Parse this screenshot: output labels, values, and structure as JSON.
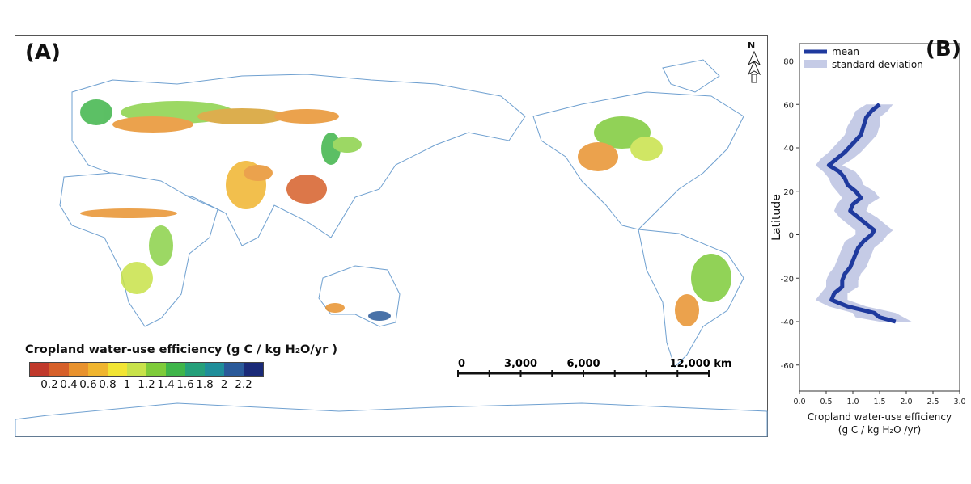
{
  "panel_a": {
    "label": "(A)",
    "north_label": "N",
    "legend": {
      "title": "Cropland water-use efficiency (g C / kg H₂O/yr )",
      "colors": [
        "#c0392b",
        "#d6602a",
        "#e8922e",
        "#f0b52f",
        "#f2e534",
        "#c8e24a",
        "#7ecb3a",
        "#3fb54a",
        "#25a07a",
        "#1f8e9a",
        "#2a5a9a",
        "#1a2a78"
      ],
      "ticks": [
        "0.2",
        "0.4",
        "0.6",
        "0.8",
        "1",
        "1.2",
        "1.4",
        "1.6",
        "1.8",
        "2",
        "2.2"
      ]
    },
    "scalebar": {
      "labels": [
        "0",
        "3,000",
        "6,000",
        "12,000 km"
      ],
      "values_km": [
        0,
        3000,
        6000,
        12000
      ]
    }
  },
  "panel_b": {
    "label": "(B)",
    "legend": {
      "mean": "mean",
      "sd": "standard deviation"
    },
    "colors": {
      "mean": "#1f3a9e",
      "sd": "#c5cbe6"
    }
  },
  "chart_data": {
    "type": "line",
    "ylabel": "Latitude",
    "xlabel_line1": "Cropland water-use efficiency",
    "xlabel_line2": "(g C / kg H₂O /yr)",
    "xlim": [
      0.0,
      3.0
    ],
    "ylim": [
      -72,
      88
    ],
    "xticks": [
      "0.0",
      "0.5",
      "1.0",
      "1.5",
      "2.0",
      "2.5",
      "3.0"
    ],
    "yticks": [
      "80",
      "60",
      "40",
      "20",
      "0",
      "-20",
      "-40",
      "-60"
    ],
    "ytick_values": [
      80,
      60,
      40,
      20,
      0,
      -20,
      -40,
      -60
    ],
    "xtick_values": [
      0.0,
      0.5,
      1.0,
      1.5,
      2.0,
      2.5,
      3.0
    ],
    "series": [
      {
        "name": "mean",
        "latitude": [
          60,
          57,
          54,
          50,
          46,
          42,
          38,
          35,
          32,
          29,
          26,
          23,
          20,
          17,
          14,
          11,
          8,
          5,
          2,
          0,
          -3,
          -6,
          -9,
          -12,
          -15,
          -18,
          -21,
          -24,
          -27,
          -30,
          -33,
          -36,
          -38,
          -40
        ],
        "values": [
          1.5,
          1.35,
          1.25,
          1.2,
          1.15,
          1.0,
          0.85,
          0.7,
          0.55,
          0.75,
          0.85,
          0.9,
          1.05,
          1.15,
          1.0,
          0.95,
          1.1,
          1.25,
          1.4,
          1.35,
          1.2,
          1.1,
          1.05,
          1.0,
          0.95,
          0.85,
          0.8,
          0.8,
          0.65,
          0.6,
          0.9,
          1.4,
          1.5,
          1.8
        ]
      },
      {
        "name": "standard deviation",
        "latitude": [
          60,
          57,
          54,
          50,
          46,
          42,
          38,
          35,
          32,
          29,
          26,
          23,
          20,
          17,
          14,
          11,
          8,
          5,
          2,
          0,
          -3,
          -6,
          -9,
          -12,
          -15,
          -18,
          -21,
          -24,
          -27,
          -30,
          -33,
          -36,
          -38,
          -40
        ],
        "values": [
          0.25,
          0.3,
          0.25,
          0.3,
          0.3,
          0.3,
          0.3,
          0.3,
          0.25,
          0.3,
          0.3,
          0.3,
          0.35,
          0.35,
          0.3,
          0.3,
          0.35,
          0.35,
          0.35,
          0.3,
          0.35,
          0.3,
          0.3,
          0.3,
          0.3,
          0.3,
          0.3,
          0.3,
          0.25,
          0.3,
          0.35,
          0.4,
          0.45,
          0.3
        ]
      }
    ]
  }
}
